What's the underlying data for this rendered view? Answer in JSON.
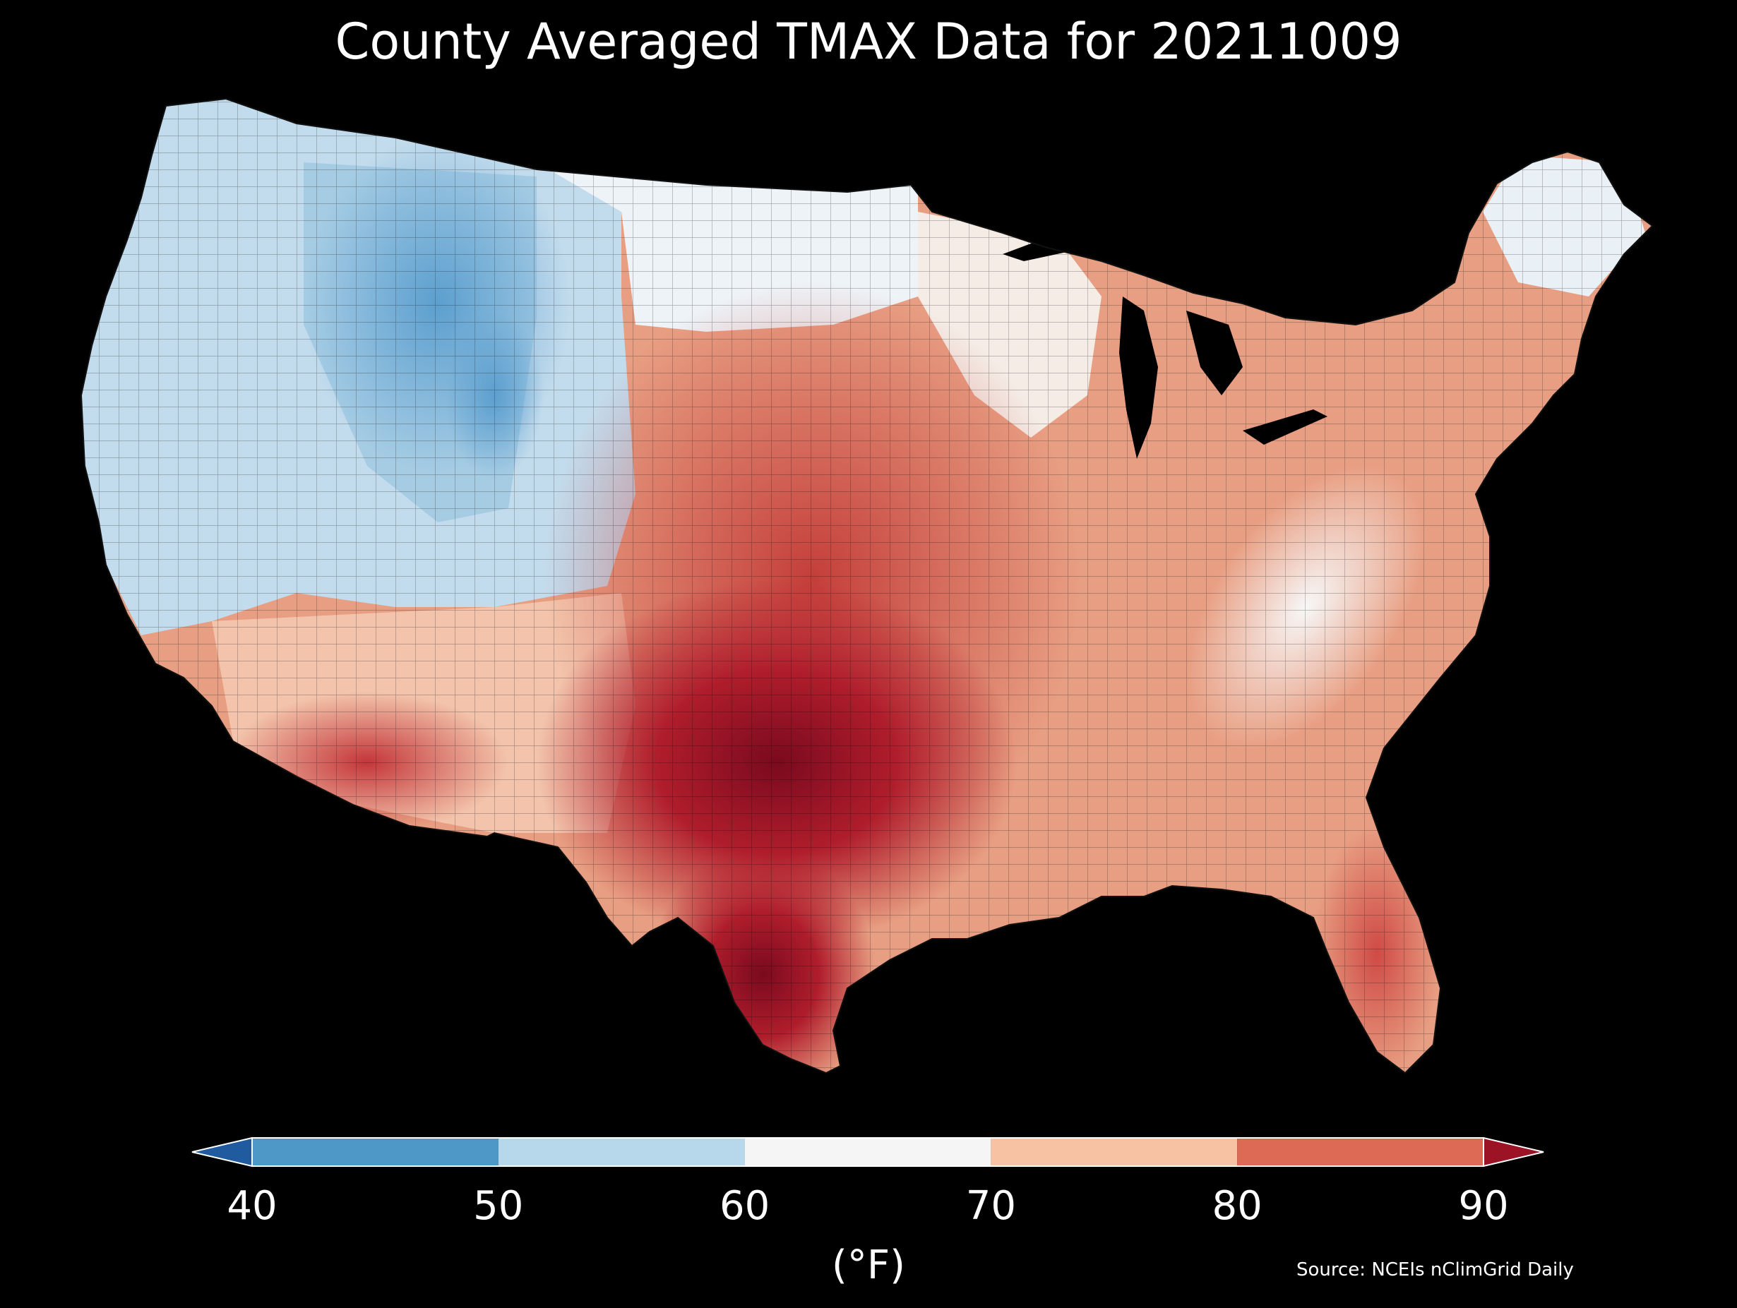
{
  "title": "County Averaged TMAX Data for 20211009",
  "colorbar": {
    "ticks": [
      "40",
      "50",
      "60",
      "70",
      "80",
      "90"
    ],
    "unit": "(°F)",
    "bins": [
      {
        "range": "<40",
        "color": "#1f5b9e"
      },
      {
        "range": "40-50",
        "color": "#4e98c8"
      },
      {
        "range": "50-60",
        "color": "#b6d8ea"
      },
      {
        "range": "60-70",
        "color": "#f5f5f5"
      },
      {
        "range": "70-80",
        "color": "#f7c2a4"
      },
      {
        "range": "80-90",
        "color": "#dc6a55"
      },
      {
        "range": ">90",
        "color": "#9c1326"
      }
    ]
  },
  "source": "Source: NCEIs nClimGrid Daily",
  "map": {
    "region": "Contiguous United States",
    "variable": "TMAX",
    "units": "°F",
    "regional_values": [
      {
        "region": "Pacific Northwest",
        "approx_tmax_f": 55
      },
      {
        "region": "Northern Rockies",
        "approx_tmax_f": 48
      },
      {
        "region": "Southwest / Arizona",
        "approx_tmax_f": 85
      },
      {
        "region": "Texas",
        "approx_tmax_f": 92
      },
      {
        "region": "Great Plains",
        "approx_tmax_f": 82
      },
      {
        "region": "Appalachians",
        "approx_tmax_f": 66
      },
      {
        "region": "Northeast",
        "approx_tmax_f": 72
      },
      {
        "region": "Florida",
        "approx_tmax_f": 86
      }
    ]
  }
}
